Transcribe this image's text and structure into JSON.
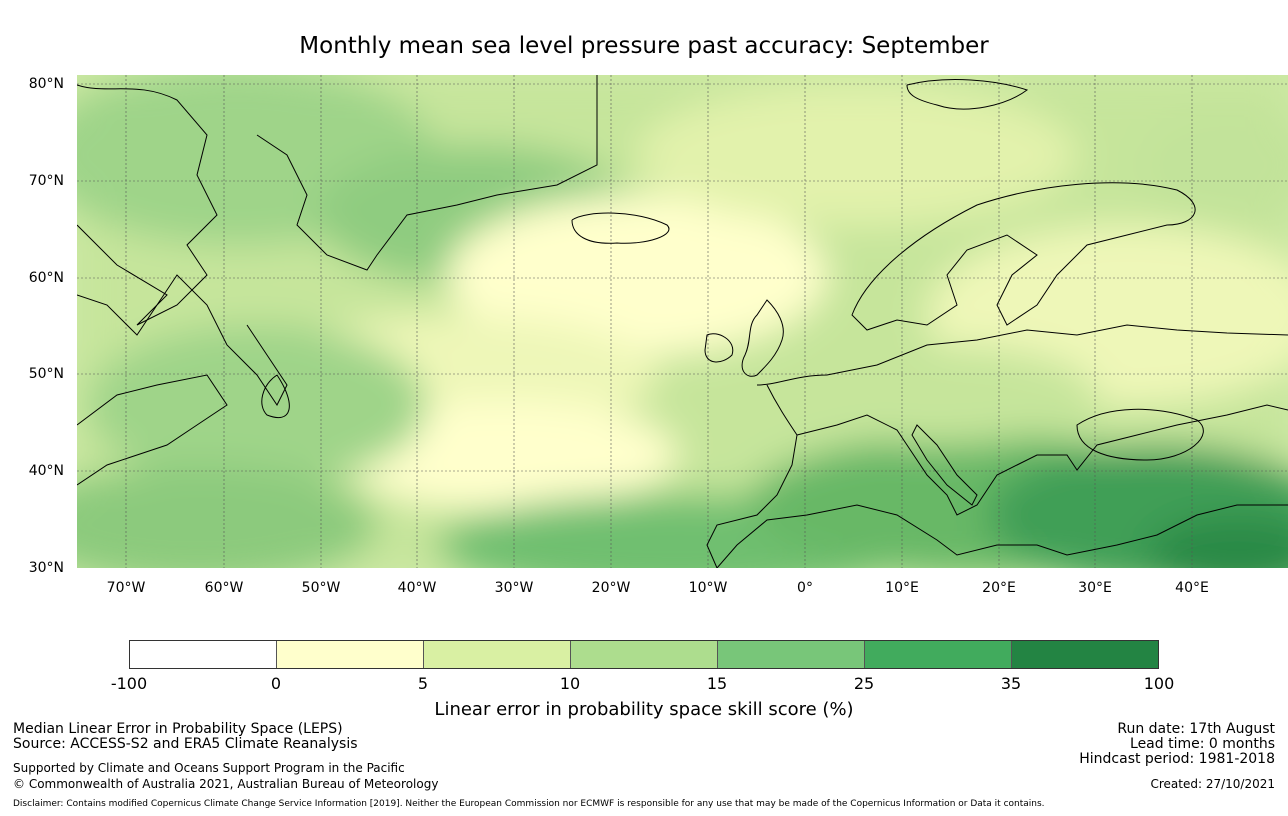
{
  "title": "Monthly mean sea level pressure past accuracy: September",
  "map": {
    "lat_labels": [
      "80°N",
      "70°N",
      "60°N",
      "50°N",
      "40°N",
      "30°N"
    ],
    "lon_labels": [
      "70°W",
      "60°W",
      "50°W",
      "40°W",
      "30°W",
      "20°W",
      "10°W",
      "0°",
      "10°E",
      "20°E",
      "30°E",
      "40°E"
    ],
    "extent": {
      "lon_min": -75,
      "lon_max": 50,
      "lat_min": 30,
      "lat_max": 81
    },
    "regions_tint": "green shading indicates higher skill over Mediterranean and subtropics; pale yellow over central North Atlantic"
  },
  "colorbar": {
    "ticks": [
      "-100",
      "0",
      "5",
      "10",
      "15",
      "25",
      "35",
      "100"
    ],
    "colors": [
      "#ffffff",
      "#ffffcc",
      "#d9f0a3",
      "#addd8e",
      "#78c679",
      "#41ab5d",
      "#238443"
    ],
    "label": "Linear error in probability space skill score (%)"
  },
  "footer": {
    "left_line1": "Median Linear Error in Probability Space (LEPS)",
    "left_line2": "Source: ACCESS-S2 and ERA5 Climate Reanalysis",
    "left_line3": "Supported by Climate and Oceans Support Program in the Pacific",
    "left_line4": "© Commonwealth of Australia 2021, Australian Bureau of Meteorology",
    "run_date": "Run date: 17th August",
    "lead_time": "Lead time: 0 months",
    "hindcast": "Hindcast period: 1981-2018",
    "created": "Created: 27/10/2021",
    "disclaimer": "Disclaimer: Contains modified Copernicus Climate Change Service Information [2019]. Neither the European Commission nor ECMWF is responsible for any use that may be made of the Copernicus Information or Data it contains."
  }
}
